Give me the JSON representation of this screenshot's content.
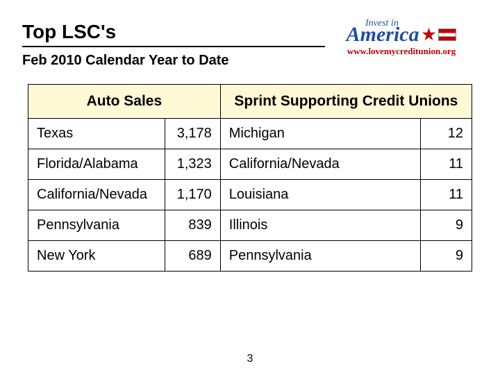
{
  "title": "Top LSC's",
  "subtitle": "Feb 2010 Calendar Year to Date",
  "logo": {
    "invest": "Invest in",
    "america": "America",
    "url": "www.lovemycreditunion.org"
  },
  "table": {
    "header_left": "Auto Sales",
    "header_right": "Sprint Supporting Credit Unions",
    "header_bg": "#fff9d6",
    "border_color": "#000000",
    "rows": [
      {
        "l_state": "Texas",
        "l_val": "3,178",
        "r_state": "Michigan",
        "r_val": "12"
      },
      {
        "l_state": "Florida/Alabama",
        "l_val": "1,323",
        "r_state": "California/Nevada",
        "r_val": "11"
      },
      {
        "l_state": "California/Nevada",
        "l_val": "1,170",
        "r_state": "Louisiana",
        "r_val": "11"
      },
      {
        "l_state": "Pennsylvania",
        "l_val": "839",
        "r_state": "Illinois",
        "r_val": "9"
      },
      {
        "l_state": "New York",
        "l_val": "689",
        "r_state": "Pennsylvania",
        "r_val": "9"
      }
    ]
  },
  "page_number": "3"
}
